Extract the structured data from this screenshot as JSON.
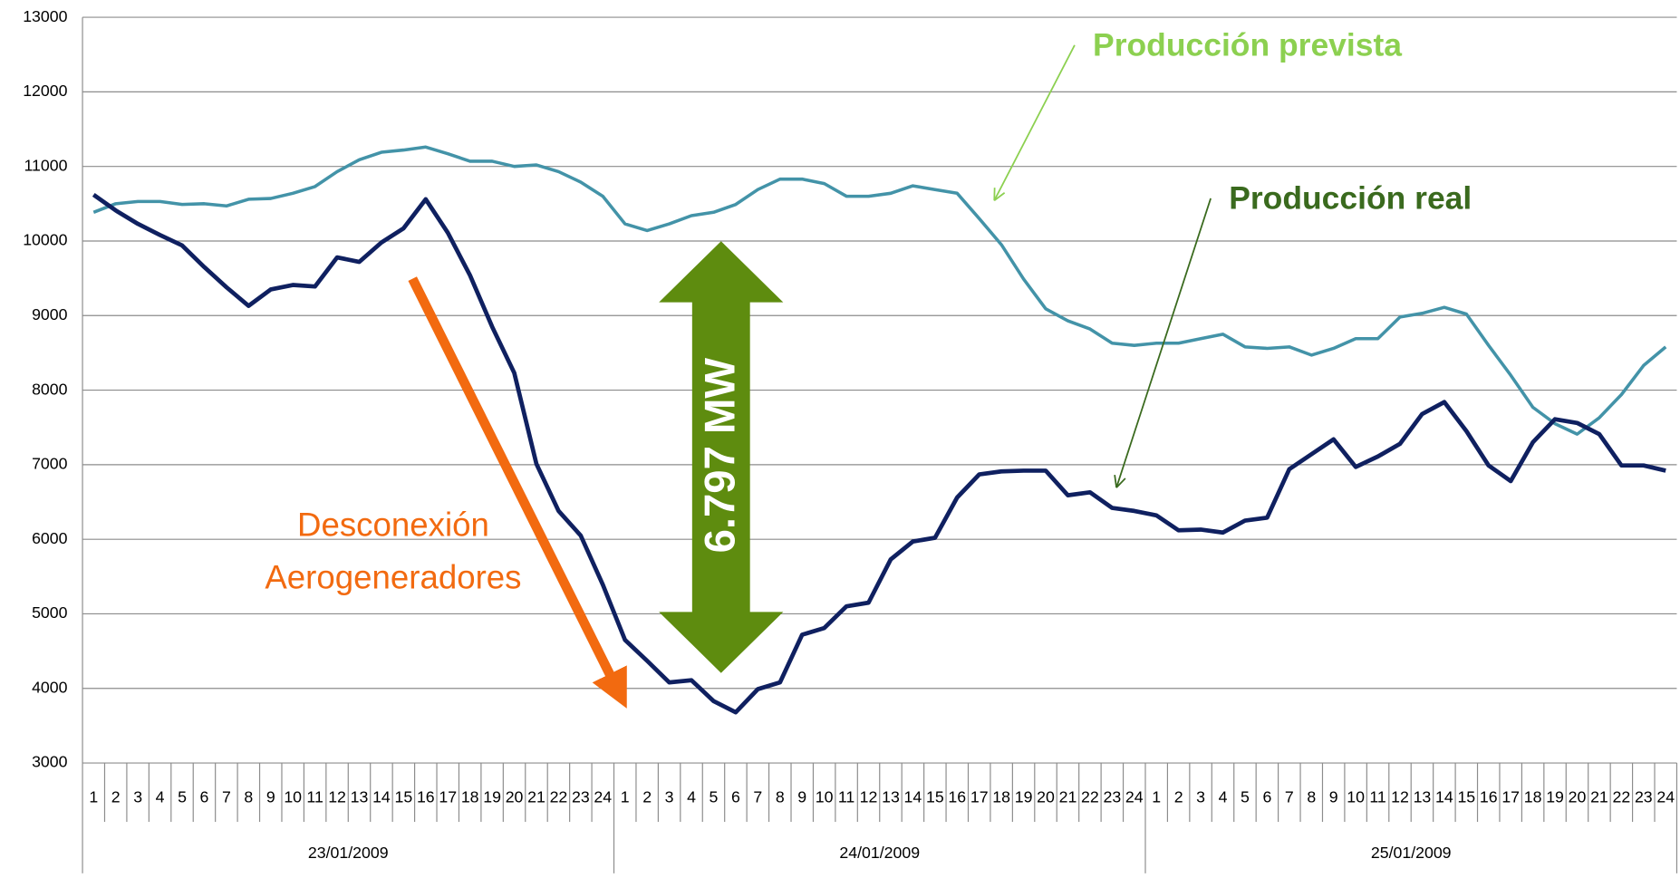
{
  "chart_data": {
    "type": "line",
    "categories": [
      "1",
      "2",
      "3",
      "4",
      "5",
      "6",
      "7",
      "8",
      "9",
      "10",
      "11",
      "12",
      "13",
      "14",
      "15",
      "16",
      "17",
      "18",
      "19",
      "20",
      "21",
      "22",
      "23",
      "24",
      "1",
      "2",
      "3",
      "4",
      "5",
      "6",
      "7",
      "8",
      "9",
      "10",
      "11",
      "12",
      "13",
      "14",
      "15",
      "16",
      "17",
      "18",
      "19",
      "20",
      "21",
      "22",
      "23",
      "24",
      "1",
      "2",
      "3",
      "4",
      "5",
      "6",
      "7",
      "8",
      "9",
      "10",
      "11",
      "12",
      "13",
      "14",
      "15",
      "16",
      "17",
      "18",
      "19",
      "20",
      "21",
      "22",
      "23",
      "24"
    ],
    "groups": [
      "23/01/2009",
      "24/01/2009",
      "25/01/2009"
    ],
    "series": [
      {
        "name": "Producción prevista",
        "color": "#4393a8",
        "label_color": "#8cd050",
        "values": [
          10385,
          10500,
          10530,
          10530,
          10490,
          10500,
          10470,
          10560,
          10570,
          10640,
          10730,
          10930,
          11090,
          11190,
          11220,
          11260,
          11170,
          11070,
          11070,
          11000,
          11020,
          10930,
          10790,
          10600,
          10230,
          10140,
          10230,
          10340,
          10385,
          10490,
          10690,
          10830,
          10830,
          10770,
          10600,
          10600,
          10640,
          10740,
          10690,
          10640,
          10300,
          9950,
          9490,
          9090,
          8930,
          8820,
          8630,
          8600,
          8630,
          8630,
          8690,
          8750,
          8580,
          8560,
          8580,
          8470,
          8560,
          8690,
          8690,
          8980,
          9030,
          9110,
          9020,
          8600,
          8200,
          7770,
          7550,
          7410,
          7630,
          7940,
          8330,
          8580
        ]
      },
      {
        "name": "Producción real",
        "color": "#0f2060",
        "label_color": "#3a6a1e",
        "values": [
          10620,
          10410,
          10230,
          10080,
          9940,
          9650,
          9380,
          9130,
          9350,
          9410,
          9390,
          9780,
          9720,
          9980,
          10170,
          10560,
          10110,
          9540,
          8850,
          8230,
          7010,
          6380,
          6050,
          5390,
          4650,
          4370,
          4080,
          4110,
          3830,
          3680,
          3990,
          4080,
          4720,
          4810,
          5100,
          5150,
          5730,
          5970,
          6020,
          6560,
          6870,
          6910,
          6920,
          6920,
          6590,
          6630,
          6420,
          6380,
          6320,
          6120,
          6130,
          6090,
          6250,
          6290,
          6940,
          7140,
          7340,
          6970,
          7110,
          7280,
          7680,
          7840,
          7450,
          6990,
          6780,
          7300,
          7610,
          7560,
          7410,
          6990,
          6990,
          6920
        ]
      }
    ],
    "annotations": [
      {
        "lines": [
          "Desconexión",
          "Aerogeneradores"
        ],
        "color": "#f26a10"
      },
      {
        "text": "6.797 MW",
        "color": "#5e8c0f"
      }
    ],
    "ylim": [
      3000,
      13000
    ],
    "yticks": [
      3000,
      4000,
      5000,
      6000,
      7000,
      8000,
      9000,
      10000,
      11000,
      12000,
      13000
    ],
    "grid": true
  }
}
